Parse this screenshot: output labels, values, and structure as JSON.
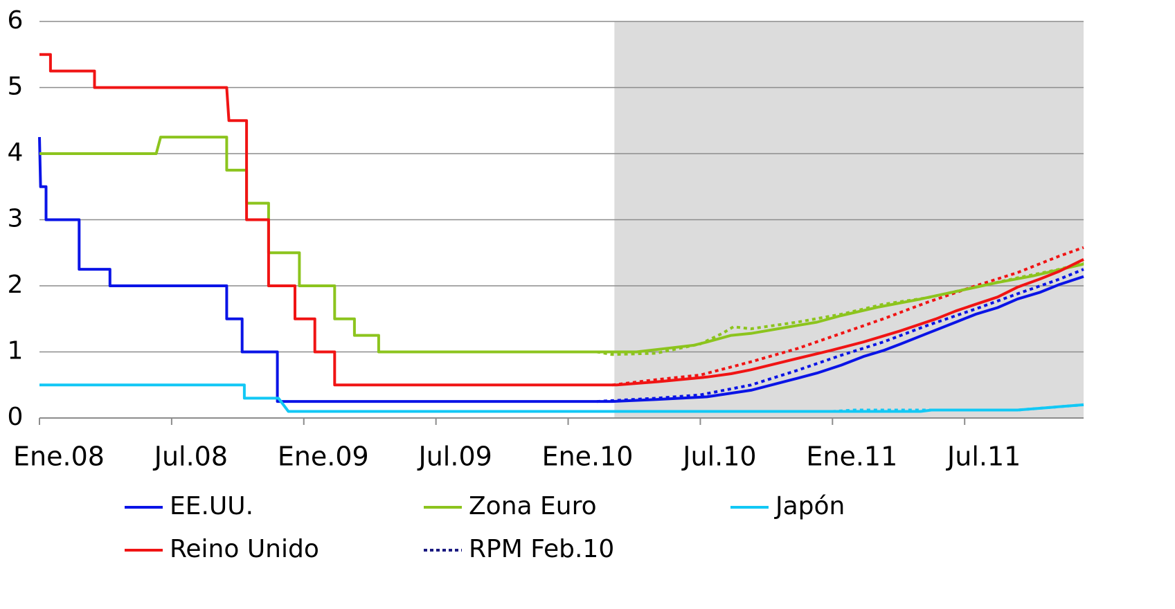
{
  "chart_data": {
    "type": "line",
    "xlim": [
      0,
      47.4
    ],
    "ylim": [
      0,
      6
    ],
    "yticks": [
      0,
      1,
      2,
      3,
      4,
      5,
      6
    ],
    "xticks": [
      {
        "value": 0,
        "label": "Ene.08"
      },
      {
        "value": 6,
        "label": "Jul.08"
      },
      {
        "value": 12,
        "label": "Ene.09"
      },
      {
        "value": 18,
        "label": "Jul.09"
      },
      {
        "value": 24,
        "label": "Ene.10"
      },
      {
        "value": 30,
        "label": "Jul.10"
      },
      {
        "value": 36,
        "label": "Ene.11"
      },
      {
        "value": 42,
        "label": "Jul.11"
      }
    ],
    "grid": true,
    "shade_from": 26.1,
    "series": [
      {
        "name": "EE.UU.",
        "color": "#0a14e6",
        "x": [
          0,
          0.05,
          0.3,
          0.3,
          1.8,
          1.8,
          3.2,
          3.2,
          8.5,
          8.5,
          9.2,
          9.2,
          10.8,
          10.8,
          26,
          28,
          30.3,
          32.3,
          34.4,
          35.3,
          36.4,
          37.4,
          38.3,
          39.1,
          40.3,
          41.6,
          42.5,
          43.5,
          44.4,
          45.4,
          46.3,
          47.4
        ],
        "values": [
          4.25,
          3.5,
          3.5,
          3.0,
          3.0,
          2.25,
          2.25,
          2.0,
          2.0,
          1.5,
          1.5,
          1.0,
          1.0,
          0.25,
          0.25,
          0.28,
          0.32,
          0.42,
          0.6,
          0.68,
          0.8,
          0.93,
          1.02,
          1.12,
          1.28,
          1.45,
          1.57,
          1.67,
          1.8,
          1.9,
          2.02,
          2.14
        ]
      },
      {
        "name": "Zona Euro",
        "color": "#8cc41e",
        "x": [
          0,
          5.3,
          5.5,
          8.5,
          8.5,
          9.4,
          9.4,
          10.4,
          10.4,
          11.8,
          11.8,
          13.4,
          13.4,
          14.3,
          14.3,
          15.4,
          15.4,
          27.1,
          28.4,
          29.7,
          30.3,
          31.4,
          32.3,
          34.4,
          35.3,
          36.4,
          38.1,
          40,
          42.1,
          43.5,
          45.1,
          47.4
        ],
        "values": [
          4.0,
          4.0,
          4.25,
          4.25,
          3.75,
          3.75,
          3.25,
          3.25,
          2.5,
          2.5,
          2.0,
          2.0,
          1.5,
          1.5,
          1.25,
          1.25,
          1.0,
          1.0,
          1.05,
          1.1,
          1.15,
          1.25,
          1.28,
          1.4,
          1.45,
          1.55,
          1.68,
          1.8,
          1.95,
          2.05,
          2.15,
          2.33
        ]
      },
      {
        "name": "Japón",
        "color": "#12c8f5",
        "x": [
          0,
          9.3,
          9.3,
          10.85,
          11.3,
          40,
          40.5,
          44.4,
          47.4
        ],
        "values": [
          0.5,
          0.5,
          0.3,
          0.3,
          0.1,
          0.1,
          0.12,
          0.12,
          0.2
        ]
      },
      {
        "name": "Reino Unido",
        "color": "#f01414",
        "x": [
          0,
          0.5,
          0.5,
          2.5,
          2.5,
          8.5,
          8.6,
          9.4,
          9.4,
          10.4,
          10.4,
          11.6,
          11.6,
          12.5,
          12.5,
          13.4,
          13.4,
          26.2,
          28.1,
          30.3,
          31.4,
          32.3,
          34.4,
          35.9,
          37.4,
          39.1,
          40.7,
          41.6,
          42.5,
          43.5,
          44.4,
          45.4,
          46.3,
          47.4
        ],
        "values": [
          5.5,
          5.5,
          5.25,
          5.25,
          5.0,
          5.0,
          4.5,
          4.5,
          3.0,
          3.0,
          2.0,
          2.0,
          1.5,
          1.5,
          1.0,
          1.0,
          0.5,
          0.5,
          0.55,
          0.62,
          0.67,
          0.73,
          0.9,
          1.02,
          1.15,
          1.32,
          1.5,
          1.62,
          1.72,
          1.83,
          1.98,
          2.1,
          2.22,
          2.4
        ]
      }
    ],
    "projections": {
      "name": "RPM Feb.10",
      "color": "#1a1a80",
      "lines": [
        {
          "color": "#0a14e6",
          "x": [
            25.3,
            28,
            30,
            32.3,
            34.4,
            36.4,
            38.3,
            40.3,
            42.5,
            44.4,
            46.3,
            47.4
          ],
          "values": [
            0.25,
            0.3,
            0.35,
            0.5,
            0.72,
            0.95,
            1.15,
            1.4,
            1.65,
            1.88,
            2.1,
            2.25
          ]
        },
        {
          "color": "#8cc41e",
          "x": [
            25.3,
            26,
            28,
            30,
            31,
            31.5,
            32.3,
            34.4,
            36.4,
            38.3,
            40.3,
            42.5,
            44.4,
            46.3,
            47.4
          ],
          "values": [
            1.0,
            0.96,
            0.98,
            1.12,
            1.28,
            1.38,
            1.35,
            1.45,
            1.57,
            1.72,
            1.82,
            1.98,
            2.12,
            2.25,
            2.35
          ]
        },
        {
          "color": "#12c8f5",
          "x": [
            25.3,
            36,
            37,
            40,
            44.4,
            47.4
          ],
          "values": [
            0.1,
            0.1,
            0.12,
            0.12,
            0.12,
            0.2
          ]
        },
        {
          "color": "#f01414",
          "x": [
            26,
            28,
            30,
            32.3,
            34.4,
            36.4,
            38.3,
            40.3,
            42.5,
            44.4,
            46.3,
            47.4
          ],
          "values": [
            0.5,
            0.58,
            0.65,
            0.85,
            1.05,
            1.28,
            1.5,
            1.75,
            2.0,
            2.2,
            2.45,
            2.58
          ]
        }
      ]
    }
  }
}
